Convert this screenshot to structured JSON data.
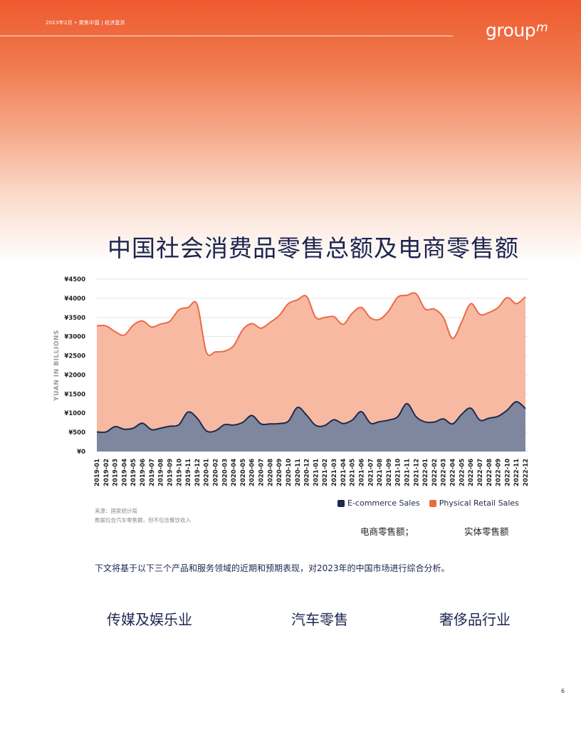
{
  "header": {
    "date_breadcrumb": "2023年2月 • 聚焦中国 | 经济复苏",
    "logo_text": "group",
    "logo_sup": "m"
  },
  "title": "中国社会消费品零售总额及电商零售额",
  "chart_data": {
    "type": "area",
    "title": "",
    "xlabel": "",
    "ylabel": "YUAN IN BILLIONS",
    "ylim": [
      0,
      4500
    ],
    "ytick_labels": [
      "¥0",
      "¥500",
      "¥1000",
      "¥1500",
      "¥2000",
      "¥2500",
      "¥3000",
      "¥3500",
      "¥4000",
      "¥4500"
    ],
    "grid": true,
    "legend_position": "bottom-right",
    "categories": [
      "2019-01",
      "2019-02",
      "2019-03",
      "2019-04",
      "2019-05",
      "2019-06",
      "2019-07",
      "2019-08",
      "2019-09",
      "2019-10",
      "2019-11",
      "2019-12",
      "2020-01",
      "2020-02",
      "2020-03",
      "2020-04",
      "2020-05",
      "2020-06",
      "2020-07",
      "2020-08",
      "2020-09",
      "2020-10",
      "2020-11",
      "2020-12",
      "2021-01",
      "2021-02",
      "2021-03",
      "2021-04",
      "2021-05",
      "2021-06",
      "2021-07",
      "2021-08",
      "2021-09",
      "2021-10",
      "2021-11",
      "2021-12",
      "2022-01",
      "2022-02",
      "2022-03",
      "2022-04",
      "2022-05",
      "2022-06",
      "2022-07",
      "2022-08",
      "2022-09",
      "2022-10",
      "2022-11",
      "2022-12"
    ],
    "series": [
      {
        "name": "E-commerce Sales",
        "color": "#1c2b4b",
        "values": [
          510,
          510,
          650,
          580,
          610,
          740,
          570,
          610,
          660,
          700,
          1030,
          870,
          540,
          540,
          700,
          690,
          760,
          940,
          720,
          720,
          730,
          790,
          1150,
          950,
          680,
          680,
          830,
          730,
          820,
          1040,
          740,
          780,
          820,
          910,
          1250,
          910,
          770,
          770,
          850,
          720,
          970,
          1130,
          820,
          870,
          920,
          1080,
          1300,
          1120
        ]
      },
      {
        "name": "Physical Retail Sales",
        "color": "#ec6a43",
        "values": [
          3280,
          3280,
          3130,
          3040,
          3300,
          3410,
          3250,
          3330,
          3400,
          3700,
          3760,
          3840,
          2600,
          2600,
          2620,
          2760,
          3180,
          3340,
          3220,
          3370,
          3550,
          3860,
          3960,
          4050,
          3500,
          3500,
          3520,
          3320,
          3610,
          3760,
          3490,
          3450,
          3670,
          4030,
          4080,
          4120,
          3720,
          3720,
          3500,
          2950,
          3380,
          3860,
          3580,
          3630,
          3760,
          4020,
          3860,
          4040
        ]
      }
    ]
  },
  "source": {
    "line1": "来源：国家统计局",
    "line2": "数据包含汽车零售额，但不包含餐饮收入"
  },
  "legend": {
    "ecom": "E-commerce Sales",
    "retail": "Physical Retail Sales"
  },
  "labels_zh": {
    "ecom": "电商零售额；",
    "retail": "实体零售额"
  },
  "intro": "下文将基于以下三个产品和服务领域的近期和预期表现，对2023年的中国市场进行综合分析。",
  "sectors": [
    "传媒及娱乐业",
    "汽车零售",
    "奢侈品行业"
  ],
  "page_number": "6"
}
